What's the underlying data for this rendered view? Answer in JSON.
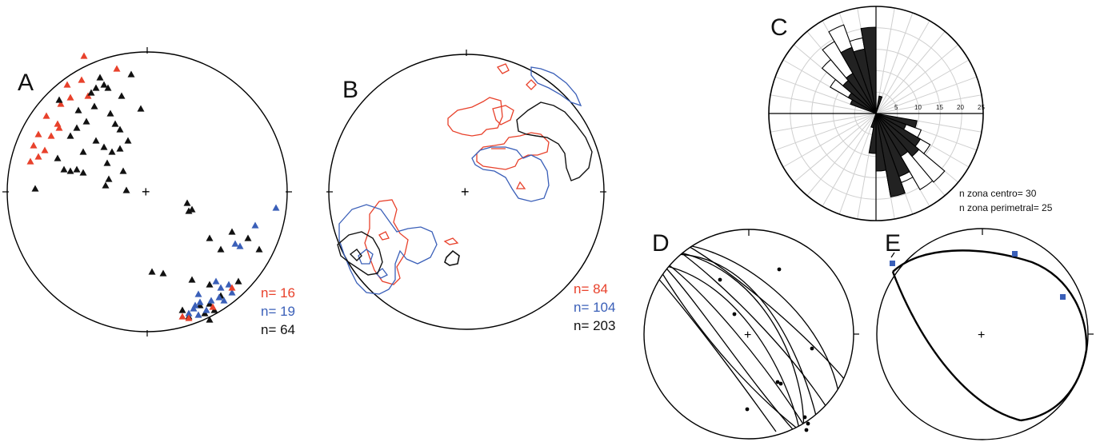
{
  "colors": {
    "red": "#e8412b",
    "blue": "#3a5fb8",
    "black": "#111111",
    "fan": "#cfcfcf"
  },
  "panels": {
    "A": {
      "label": "A",
      "counts": [
        {
          "text": "n= 16",
          "color": "#e8412b"
        },
        {
          "text": "n= 19",
          "color": "#3a5fb8"
        },
        {
          "text": "n= 64",
          "color": "#111111"
        }
      ]
    },
    "B": {
      "label": "B",
      "counts": [
        {
          "text": "n= 84",
          "color": "#e8412b"
        },
        {
          "text": "n= 104",
          "color": "#3a5fb8"
        },
        {
          "text": "n= 203",
          "color": "#111111"
        }
      ]
    },
    "C": {
      "label": "C",
      "ring_labels": [
        "5",
        "10",
        "15",
        "20",
        "25"
      ],
      "notes": [
        "n zona centro= 30",
        "n zona perimetral= 25"
      ]
    },
    "D": {
      "label": "D"
    },
    "E": {
      "label": "E"
    }
  }
}
